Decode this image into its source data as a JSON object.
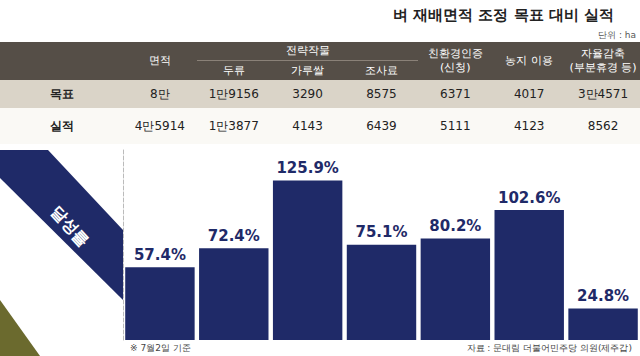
{
  "chart_data": {
    "type": "bar",
    "title": "벼 재배면적 조정 목표 대비 실적",
    "subtitle": "단위 : ha",
    "categories": [
      "면적",
      "두류",
      "가루쌀",
      "조사료",
      "친환경인증\n(신청)",
      "농지 이용",
      "자율감축\n(부분휴경 등)"
    ],
    "values": [
      57.4,
      72.4,
      125.9,
      75.1,
      80.2,
      102.6,
      24.8
    ],
    "value_labels": [
      "57.4%",
      "72.4%",
      "125.9%",
      "75.1%",
      "80.2%",
      "102.6%",
      "24.8%"
    ],
    "color": "#1f2a68",
    "ylim": [
      0,
      150
    ],
    "yticks": [],
    "grid": false,
    "tick_labels": false,
    "data_labels": true
  },
  "table": {
    "header_group": {
      "label": "전략작물",
      "members": [
        "두류",
        "가루쌀",
        "조사료"
      ]
    },
    "rows": [
      {
        "label": "목표",
        "cells": [
          "8만",
          "1만9156",
          "3290",
          "8575",
          "6371",
          "4017",
          "3만4571"
        ]
      },
      {
        "label": "실적",
        "cells": [
          "4만5914",
          "1만3877",
          "4143",
          "6439",
          "5111",
          "4123",
          "8562"
        ]
      }
    ]
  },
  "side_label": "달성률",
  "note": "※ 7월2일 기준",
  "source": "자료 : 문대림 더불어민주당 의원(제주갑)"
}
